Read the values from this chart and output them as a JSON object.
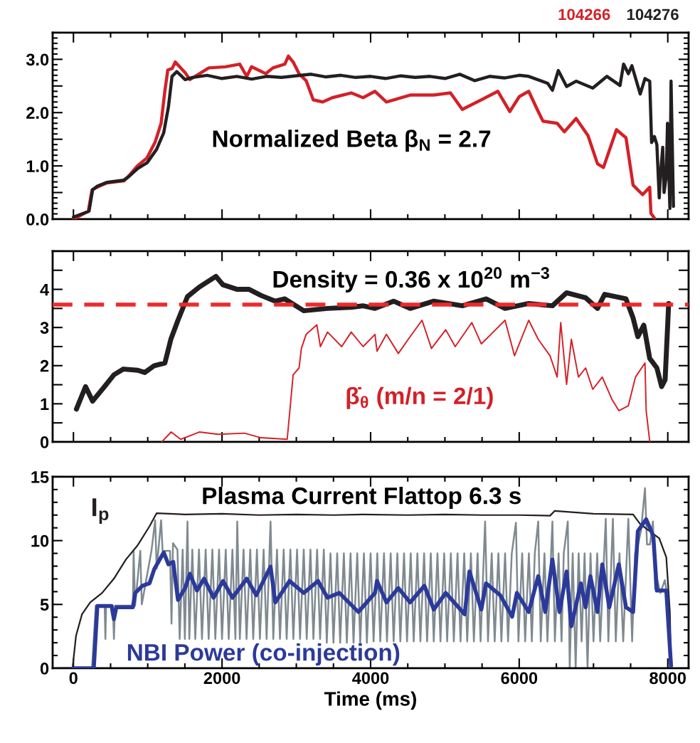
{
  "chart_data": [
    {
      "type": "line",
      "xlim": [
        -280,
        8280
      ],
      "ylim": [
        0,
        3.5
      ],
      "xticks": [
        0,
        2000,
        4000,
        6000,
        8000
      ],
      "tick_labels": "y",
      "legend": "top right",
      "yticks": [
        {
          "value": 0,
          "label": "0.0"
        },
        {
          "value": 0.5,
          "label": null
        },
        {
          "value": 1,
          "label": "1.0"
        },
        {
          "value": 1.5,
          "label": null
        },
        {
          "value": 2,
          "label": "2.0"
        },
        {
          "value": 2.5,
          "label": null
        },
        {
          "value": 3,
          "label": "3.0"
        },
        {
          "value": 3.5,
          "label": null
        }
      ],
      "annotations": [
        "Normalized Beta β$_{N}$ = 2.7"
      ],
      "series": [
        {
          "name": "104266",
          "color": "#d42027",
          "x": [
            0,
            200,
            250,
            320,
            450,
            680,
            750,
            860,
            990,
            1100,
            1180,
            1230,
            1270,
            1330,
            1370,
            1503,
            1567,
            1822,
            2046,
            2238,
            2333,
            2397,
            2589,
            2685,
            2845,
            2893,
            2957,
            3037,
            3132,
            3228,
            3356,
            3484,
            3739,
            3899,
            4059,
            4213,
            4532,
            4851,
            5075,
            5234,
            5490,
            5713,
            5873,
            6001,
            6128,
            6256,
            6320,
            6511,
            6607,
            6766,
            6926,
            7054,
            7134,
            7309,
            7437,
            7533,
            7661,
            7757,
            7773,
            7821
          ],
          "values": [
            0.0,
            0.15,
            0.55,
            0.6,
            0.68,
            0.72,
            0.82,
            1.0,
            1.15,
            1.45,
            1.8,
            2.4,
            2.8,
            2.83,
            2.95,
            2.75,
            2.62,
            2.84,
            2.86,
            2.91,
            2.68,
            2.86,
            2.73,
            2.84,
            2.91,
            3.06,
            2.95,
            2.73,
            2.6,
            2.24,
            2.2,
            2.28,
            2.37,
            2.28,
            2.4,
            2.2,
            2.33,
            2.33,
            2.37,
            2.06,
            2.24,
            2.4,
            2.02,
            2.3,
            2.4,
            2.02,
            1.84,
            1.8,
            1.64,
            1.89,
            1.57,
            1.04,
            0.97,
            1.68,
            1.53,
            0.64,
            0.46,
            0.6,
            0.11,
            0.02
          ]
        },
        {
          "name": "104276",
          "color": "#231f20",
          "x": [
            0,
            210,
            258,
            322,
            447,
            673,
            737,
            864,
            992,
            1119,
            1215,
            1279,
            1327,
            1391,
            1503,
            1600,
            1800,
            2000,
            2200,
            2400,
            2600,
            2800,
            3000,
            3200,
            3400,
            3600,
            3800,
            4000,
            4200,
            4400,
            4600,
            4800,
            5000,
            5200,
            5400,
            5600,
            5800,
            6000,
            6128,
            6383,
            6447,
            6526,
            6638,
            6766,
            6990,
            7181,
            7357,
            7405,
            7469,
            7517,
            7629,
            7693,
            7757,
            7782,
            7820,
            7853,
            7885,
            7900,
            7932,
            7950,
            7980,
            7996,
            8028,
            8044,
            8076
          ],
          "values": [
            0.04,
            0.15,
            0.55,
            0.62,
            0.69,
            0.73,
            0.79,
            0.95,
            1.06,
            1.31,
            1.62,
            2.11,
            2.68,
            2.77,
            2.62,
            2.66,
            2.7,
            2.64,
            2.68,
            2.63,
            2.68,
            2.66,
            2.69,
            2.72,
            2.67,
            2.7,
            2.66,
            2.68,
            2.64,
            2.69,
            2.66,
            2.68,
            2.64,
            2.72,
            2.6,
            2.68,
            2.65,
            2.7,
            2.68,
            2.55,
            2.42,
            2.79,
            2.49,
            2.59,
            2.46,
            2.68,
            2.51,
            2.91,
            2.73,
            2.88,
            2.35,
            2.64,
            2.59,
            1.44,
            1.55,
            1.4,
            0.4,
            0.8,
            1.35,
            0.5,
            0.82,
            1.8,
            0.2,
            2.59,
            0.24
          ]
        }
      ]
    },
    {
      "type": "line",
      "xlim": [
        -280,
        8280
      ],
      "ylim": [
        0,
        5
      ],
      "xticks": [
        0,
        2000,
        4000,
        6000,
        8000
      ],
      "tick_labels": "y",
      "yticks": [
        0,
        {
          "value": 0.5,
          "label": null
        },
        1,
        {
          "value": 1.5,
          "label": null
        },
        2,
        {
          "value": 2.5,
          "label": null
        },
        3,
        {
          "value": 3.5,
          "label": null
        },
        4,
        {
          "value": 4.5,
          "label": null
        },
        {
          "value": 5,
          "label": null
        }
      ],
      "annotations": [
        "Density = 0.36 x 10$^{20}$ m$^{−3}$"
      ],
      "ref_lines": [
        {
          "axis": "y",
          "value": 3.6,
          "color": "#ee2a2a",
          "line_style": "dashed"
        }
      ],
      "series": [
        {
          "color": "#231f20",
          "x": [
            40,
            163,
            258,
            418,
            545,
            673,
            864,
            960,
            1088,
            1231,
            1311,
            1407,
            1535,
            1694,
            1917,
            2013,
            2205,
            2365,
            2525,
            2717,
            2845,
            3100,
            3420,
            3739,
            3895,
            4059,
            4309,
            4532,
            4851,
            5234,
            5553,
            5809,
            6128,
            6447,
            6638,
            6894,
            7054,
            7150,
            7437,
            7533,
            7597,
            7677,
            7757,
            7853,
            7917,
            7964,
            8012
          ],
          "values": [
            0.86,
            1.45,
            1.07,
            1.45,
            1.76,
            1.91,
            1.88,
            1.82,
            2.0,
            2.07,
            2.69,
            3.19,
            3.81,
            4.06,
            4.34,
            4.12,
            4.0,
            4.0,
            3.84,
            3.69,
            3.75,
            3.44,
            3.5,
            3.53,
            3.57,
            3.5,
            3.69,
            3.5,
            3.69,
            3.57,
            3.75,
            3.5,
            3.63,
            3.57,
            3.91,
            3.78,
            3.5,
            3.87,
            3.75,
            3.25,
            2.76,
            3.06,
            2.19,
            1.94,
            1.45,
            1.63,
            3.63
          ]
        },
        {
          "name": "β̇$_{θ}$ (m/n = 2/1)",
          "color": "#d42027",
          "x": [
            1188,
            1315,
            1443,
            1694,
            1949,
            2301,
            2525,
            2877,
            2925,
            2957,
            3037,
            3068,
            3132,
            3276,
            3324,
            3420,
            3611,
            3739,
            3899,
            4059,
            4086,
            4213,
            4373,
            4532,
            4692,
            4819,
            5011,
            5139,
            5362,
            5490,
            5681,
            5809,
            5937,
            6128,
            6256,
            6415,
            6511,
            6559,
            6638,
            6702,
            6798,
            6894,
            6990,
            7118,
            7245,
            7341,
            7469,
            7565,
            7693,
            7709,
            7757
          ],
          "values": [
            0.0,
            0.26,
            0.07,
            0.26,
            0.2,
            0.23,
            0.11,
            0.07,
            1.07,
            1.76,
            1.94,
            2.45,
            2.82,
            3.07,
            2.5,
            2.88,
            2.5,
            2.88,
            2.5,
            2.82,
            2.38,
            2.82,
            2.32,
            2.76,
            3.19,
            2.45,
            2.94,
            2.5,
            3.13,
            2.57,
            2.94,
            3.19,
            2.26,
            3.19,
            2.69,
            2.26,
            1.7,
            3.13,
            1.51,
            2.69,
            1.7,
            1.94,
            1.38,
            1.7,
            1.13,
            0.82,
            0.95,
            1.7,
            2.07,
            0.82,
            0.01
          ]
        }
      ]
    },
    {
      "type": "line",
      "xlim": [
        -280,
        8280
      ],
      "ylim": [
        0,
        15
      ],
      "xticks": [
        0,
        2000,
        4000,
        6000,
        8000
      ],
      "yticks": [
        0,
        5,
        10,
        15
      ],
      "xlabel": "Time (ms)",
      "annotations": [
        "Plasma Current Flattop 6.3 s"
      ],
      "series": [
        {
          "color": "#7f8a90",
          "x": [
            250,
            300,
            420,
            430,
            440,
            530,
            545,
            560,
            800,
            810,
            830,
            900,
            920,
            1050,
            1100,
            1120,
            1180,
            1200,
            1300,
            1320,
            1340,
            1400,
            1430,
            1470,
            1500,
            1535,
            1560,
            1600,
            1640,
            1690,
            1730,
            1780,
            1820,
            1870,
            1910,
            1960,
            2000,
            2050,
            2090,
            2140,
            2180,
            2205,
            2240,
            2290,
            2330,
            2380,
            2420,
            2470,
            2510,
            2560,
            2600,
            2653,
            2690,
            2740,
            2780,
            2830,
            2870,
            2920,
            2960,
            3010,
            3050,
            3100,
            3140,
            3190,
            3230,
            3280,
            3320,
            3370,
            3410,
            3460,
            3500,
            3550,
            3590,
            3640,
            3680,
            3730,
            3770,
            3820,
            3860,
            3910,
            3950,
            4000,
            4040,
            4090,
            4130,
            4180,
            4220,
            4270,
            4310,
            4360,
            4400,
            4450,
            4490,
            4540,
            4580,
            4630,
            4670,
            4720,
            4760,
            4810,
            4850,
            4900,
            4940,
            4990,
            5030,
            5080,
            5120,
            5170,
            5210,
            5260,
            5300,
            5350,
            5390,
            5440,
            5480,
            5541,
            5580,
            5630,
            5670,
            5720,
            5760,
            5810,
            5850,
            5900,
            5956,
            5990,
            6040,
            6080,
            6130,
            6170,
            6210,
            6256,
            6290,
            6340,
            6380,
            6447,
            6480,
            6530,
            6570,
            6600,
            6654,
            6680,
            6720,
            6760,
            6800,
            6840,
            6880,
            6920,
            6960,
            7000,
            7050,
            7090,
            7165,
            7200,
            7261,
            7300,
            7350,
            7400,
            7469,
            7520,
            7560,
            7600,
            7640,
            7693,
            7720,
            7760,
            7800,
            7830,
            7860,
            7900,
            7960,
            7990,
            8030
          ],
          "values": [
            0,
            4.9,
            4.9,
            2.3,
            4.9,
            4.9,
            2.3,
            4.9,
            4.9,
            9.2,
            4.9,
            9.2,
            5.0,
            9.2,
            11.6,
            7.8,
            11.6,
            9.2,
            9.2,
            3.5,
            9.8,
            9.3,
            2.3,
            9.3,
            2.3,
            11.5,
            2.3,
            9.3,
            2.3,
            9.3,
            2.3,
            9.3,
            2.3,
            9.3,
            2.3,
            9.3,
            2.3,
            9.3,
            2.3,
            9.3,
            2.3,
            11.5,
            2.3,
            9.3,
            2.3,
            9.3,
            2.3,
            9.3,
            2.3,
            9.3,
            2.3,
            11.5,
            2.3,
            9.3,
            2.3,
            9.3,
            2.3,
            9.3,
            2.3,
            9.3,
            2.3,
            9.3,
            2.3,
            9.3,
            2.3,
            9.3,
            2.3,
            9.3,
            2.0,
            9.0,
            2.0,
            9.0,
            2.0,
            9.0,
            2.0,
            9.0,
            2.0,
            9.0,
            2.0,
            9.0,
            2.0,
            9.0,
            2.1,
            9.0,
            2.1,
            9.0,
            2.1,
            9.0,
            2.1,
            9.0,
            2.1,
            9.0,
            2.1,
            9.0,
            2.1,
            9.0,
            2.1,
            9.0,
            2.1,
            9.0,
            2.1,
            9.0,
            2.1,
            9.0,
            2.1,
            9.0,
            2.1,
            9.0,
            2.1,
            9.0,
            2.1,
            9.0,
            2.1,
            9.0,
            2.1,
            11.5,
            2.1,
            9.0,
            2.1,
            9.0,
            2.1,
            9.0,
            2.1,
            9.0,
            11.4,
            2.1,
            9.0,
            2.1,
            9.0,
            2.1,
            9.0,
            11.5,
            2.1,
            9.0,
            2.1,
            11.5,
            2.1,
            9.0,
            2.1,
            9.0,
            11.5,
            0.0,
            9.0,
            0.0,
            9.0,
            2.1,
            9.0,
            0.0,
            9.0,
            2.1,
            9.0,
            2.1,
            11.7,
            2.1,
            11.7,
            2.1,
            9.0,
            2.1,
            11.7,
            2.1,
            9.0,
            9.7,
            10.8,
            14.1,
            9.7,
            9.7,
            11.5,
            6.2,
            6.9,
            5.9,
            6.9,
            5.9,
            0.0
          ]
        },
        {
          "name": "I$_{p}$",
          "color": "#231f20",
          "x": [
            -250,
            -12,
            35,
            115,
            226,
            386,
            545,
            705,
            864,
            1024,
            1119,
            1500,
            2000,
            2500,
            3000,
            3500,
            3895,
            4500,
            5000,
            5500,
            6000,
            6415,
            6479,
            7000,
            7533,
            7629,
            7757,
            7885,
            7980,
            8028,
            8044
          ],
          "values": [
            0,
            0.04,
            2.55,
            4.23,
            5.16,
            5.9,
            7.02,
            8.51,
            9.63,
            11.12,
            12.14,
            12.05,
            12.1,
            12.0,
            12.05,
            12.0,
            12.05,
            12.0,
            12.05,
            12.0,
            12.0,
            11.95,
            12.33,
            12.1,
            12.05,
            11.3,
            10.74,
            10.18,
            8.69,
            4.41,
            0.13
          ]
        },
        {
          "name": "NBI Power (co-injection)",
          "color": "#2b3a9a",
          "x": [
            3,
            274,
            322,
            513,
            545,
            577,
            800,
            832,
            928,
            1024,
            1088,
            1215,
            1279,
            1343,
            1407,
            1503,
            1567,
            1662,
            1758,
            1886,
            2013,
            2141,
            2333,
            2461,
            2653,
            2717,
            2909,
            3100,
            3292,
            3420,
            3579,
            3835,
            4059,
            4086,
            4213,
            4373,
            4532,
            4724,
            4851,
            5011,
            5266,
            5330,
            5490,
            5553,
            5745,
            5905,
            5969,
            6128,
            6256,
            6351,
            6447,
            6543,
            6638,
            6702,
            6830,
            6894,
            6958,
            7054,
            7118,
            7213,
            7341,
            7437,
            7533,
            7597,
            7709,
            7805,
            7853,
            7980,
            8044
          ],
          "values": [
            0,
            0,
            4.88,
            4.88,
            3.85,
            4.78,
            4.78,
            5.9,
            6.46,
            6.65,
            7.77,
            9.07,
            8.14,
            8.33,
            5.35,
            6.28,
            7.4,
            6.09,
            7.02,
            5.53,
            6.84,
            5.53,
            7.02,
            5.72,
            7.96,
            5.16,
            6.84,
            5.9,
            6.84,
            5.53,
            5.9,
            4.41,
            5.9,
            6.84,
            5.16,
            6.28,
            5.16,
            6.46,
            4.6,
            5.9,
            4.23,
            7.58,
            4.6,
            6.65,
            5.72,
            4.04,
            5.9,
            4.41,
            7.21,
            4.41,
            8.51,
            4.41,
            7.58,
            3.29,
            6.65,
            4.78,
            7.21,
            4.41,
            8.14,
            4.78,
            8.14,
            4.78,
            4.41,
            10.74,
            11.67,
            10.37,
            6.09,
            6.09,
            0.19
          ]
        }
      ]
    }
  ]
}
